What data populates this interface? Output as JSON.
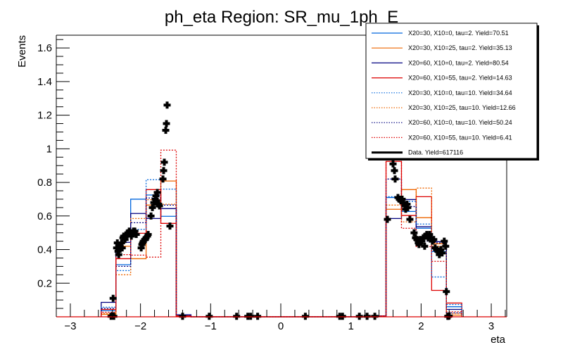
{
  "chart_data": {
    "type": "histogram",
    "title": "ph_eta Region: SR_mu_1ph_E",
    "xlabel": "eta",
    "ylabel": "Events",
    "xlim": [
      -3.2,
      3.22
    ],
    "ylim": [
      0,
      1.676
    ],
    "xticks": [
      -3,
      -2,
      -1,
      0,
      1,
      2,
      3
    ],
    "xtick_labels": [
      "−3",
      "−2",
      "−1",
      "0",
      "1",
      "2",
      "3"
    ],
    "yticks": [
      0.2,
      0.4,
      0.6,
      0.8,
      1.0,
      1.2,
      1.4,
      1.6
    ],
    "ytick_labels": [
      "0.2",
      "0.4",
      "0.6",
      "0.8",
      "1",
      "1.2",
      "1.4",
      "1.6"
    ],
    "grid": false,
    "legend_position": "top-right",
    "bin_edges": [
      -2.56,
      -2.35,
      -2.14,
      -1.92,
      -1.71,
      -1.49,
      -1.28,
      1.29,
      1.5,
      1.72,
      1.93,
      2.15,
      2.36,
      2.58
    ],
    "series": [
      {
        "name": "X20=30, X10=0, tau=2. Yield=70.51",
        "color": "#0066dd",
        "style": "solid",
        "values": [
          0.036,
          0.31,
          0.7,
          0.725,
          0.598,
          0.01,
          0,
          0.005,
          0.71,
          0.627,
          0.527,
          0.388,
          0.06
        ]
      },
      {
        "name": "X20=30, X10=25, tau=2. Yield=35.13",
        "color": "#ee6600",
        "style": "solid",
        "values": [
          0.015,
          0.42,
          0.346,
          0.665,
          0.808,
          0.005,
          0,
          0.005,
          0.64,
          0.757,
          0.59,
          0.435,
          0.01
        ]
      },
      {
        "name": "X20=60, X10=0, tau=2. Yield=80.54",
        "color": "#000080",
        "style": "solid",
        "values": [
          0.086,
          0.443,
          0.615,
          0.585,
          0.644,
          0.012,
          0,
          0.005,
          0.585,
          0.698,
          0.536,
          0.447,
          0.044
        ]
      },
      {
        "name": "X20=60, X10=55, tau=2. Yield=14.63",
        "color": "#dd0000",
        "style": "solid",
        "values": [
          0.044,
          0.346,
          0.497,
          0.757,
          0.556,
          0.005,
          0,
          0.005,
          0.925,
          0.603,
          0.715,
          0.157,
          0.082
        ]
      },
      {
        "name": "X20=30, X10=0, tau=10. Yield=34.64",
        "color": "#0066dd",
        "style": "dotted",
        "values": [
          0.057,
          0.275,
          0.52,
          0.816,
          0.76,
          0.01,
          0,
          0.005,
          0.715,
          0.687,
          0.552,
          0.237,
          0.073
        ]
      },
      {
        "name": "X20=30, X10=25, tau=10. Yield=12.66",
        "color": "#ee6600",
        "style": "dotted",
        "values": [
          0.02,
          0.25,
          0.585,
          0.697,
          0.67,
          0.005,
          0,
          0.005,
          0.665,
          0.565,
          0.766,
          0.42,
          0.019
        ]
      },
      {
        "name": "X20=60, X10=0, tau=10. Yield=50.24",
        "color": "#000080",
        "style": "dotted",
        "values": [
          0.05,
          0.3,
          0.56,
          0.707,
          0.665,
          0.01,
          0,
          0.005,
          0.82,
          0.656,
          0.45,
          0.44,
          0.023
        ]
      },
      {
        "name": "X20=60, X10=55, tau=10. Yield=6.41",
        "color": "#dd0000",
        "style": "dotted",
        "values": [
          0.027,
          0.37,
          0.367,
          0.355,
          0.992,
          0.005,
          0,
          0.005,
          0.99,
          0.527,
          0.418,
          0.33,
          0.03
        ]
      }
    ],
    "data_series": {
      "name": "Data. Yield=617116",
      "color": "#000000",
      "points": [
        [
          -2.42,
          0.003
        ],
        [
          -2.4,
          0.005
        ],
        [
          -2.38,
          0.003
        ],
        [
          -2.39,
          0.11
        ],
        [
          -2.34,
          0.41
        ],
        [
          -2.33,
          0.44
        ],
        [
          -2.32,
          0.39
        ],
        [
          -2.31,
          0.37
        ],
        [
          -2.3,
          0.42
        ],
        [
          -2.28,
          0.41
        ],
        [
          -2.27,
          0.44
        ],
        [
          -2.26,
          0.41
        ],
        [
          -2.25,
          0.47
        ],
        [
          -2.24,
          0.48
        ],
        [
          -2.22,
          0.46
        ],
        [
          -2.2,
          0.48
        ],
        [
          -2.19,
          0.49
        ],
        [
          -2.18,
          0.5
        ],
        [
          -2.16,
          0.51
        ],
        [
          -2.15,
          0.5
        ],
        [
          -2.13,
          0.48
        ],
        [
          -2.12,
          0.5
        ],
        [
          -2.1,
          0.51
        ],
        [
          -2.08,
          0.51
        ],
        [
          -2.06,
          0.49
        ],
        [
          -1.99,
          0.41
        ],
        [
          -1.98,
          0.43
        ],
        [
          -1.97,
          0.44
        ],
        [
          -1.96,
          0.45
        ],
        [
          -1.94,
          0.46
        ],
        [
          -1.93,
          0.46
        ],
        [
          -1.92,
          0.47
        ],
        [
          -1.9,
          0.48
        ],
        [
          -1.89,
          0.49
        ],
        [
          -1.85,
          0.6
        ],
        [
          -1.83,
          0.65
        ],
        [
          -1.81,
          0.68
        ],
        [
          -1.79,
          0.7
        ],
        [
          -1.77,
          0.69
        ],
        [
          -1.78,
          0.72
        ],
        [
          -1.76,
          0.74
        ],
        [
          -1.74,
          0.67
        ],
        [
          -1.73,
          0.66
        ],
        [
          -1.68,
          0.82
        ],
        [
          -1.67,
          0.87
        ],
        [
          -1.66,
          0.92
        ],
        [
          -1.64,
          1.11
        ],
        [
          -1.63,
          1.15
        ],
        [
          -1.62,
          1.26
        ],
        [
          -1.58,
          0.54
        ],
        [
          -1.4,
          0.003
        ],
        [
          -1.02,
          0.003
        ],
        [
          -0.63,
          0.003
        ],
        [
          -0.47,
          0.003
        ],
        [
          -0.43,
          0.003
        ],
        [
          -0.33,
          0.003
        ],
        [
          0.35,
          0.003
        ],
        [
          0.84,
          0.003
        ],
        [
          0.88,
          0.003
        ],
        [
          1.12,
          0.003
        ],
        [
          1.23,
          0.003
        ],
        [
          1.34,
          0.003
        ],
        [
          1.52,
          0.58
        ],
        [
          1.6,
          0.91
        ],
        [
          1.62,
          0.87
        ],
        [
          1.63,
          0.82
        ],
        [
          1.67,
          0.71
        ],
        [
          1.69,
          0.7
        ],
        [
          1.71,
          0.69
        ],
        [
          1.73,
          0.7
        ],
        [
          1.75,
          0.68
        ],
        [
          1.77,
          0.66
        ],
        [
          1.78,
          0.64
        ],
        [
          1.8,
          0.67
        ],
        [
          1.81,
          0.65
        ],
        [
          1.84,
          0.58
        ],
        [
          1.9,
          0.5
        ],
        [
          1.92,
          0.47
        ],
        [
          1.94,
          0.46
        ],
        [
          1.96,
          0.44
        ],
        [
          1.97,
          0.43
        ],
        [
          1.99,
          0.46
        ],
        [
          2.01,
          0.45
        ],
        [
          2.03,
          0.47
        ],
        [
          2.05,
          0.42
        ],
        [
          2.06,
          0.48
        ],
        [
          2.08,
          0.49
        ],
        [
          2.1,
          0.47
        ],
        [
          2.12,
          0.49
        ],
        [
          2.14,
          0.47
        ],
        [
          2.16,
          0.45
        ],
        [
          2.18,
          0.46
        ],
        [
          2.2,
          0.41
        ],
        [
          2.22,
          0.4
        ],
        [
          2.24,
          0.39
        ],
        [
          2.26,
          0.37
        ],
        [
          2.28,
          0.4
        ],
        [
          2.3,
          0.38
        ],
        [
          2.33,
          0.45
        ],
        [
          2.35,
          0.42
        ],
        [
          2.38,
          0.003
        ],
        [
          2.4,
          0.005
        ],
        [
          2.36,
          0.15
        ],
        [
          2.39,
          0.003
        ]
      ]
    },
    "legend": [
      {
        "label": "X20=30, X10=0, tau=2. Yield=70.51",
        "color": "#0066dd",
        "style": "solid"
      },
      {
        "label": "X20=30, X10=25, tau=2. Yield=35.13",
        "color": "#ee6600",
        "style": "solid"
      },
      {
        "label": "X20=60, X10=0, tau=2. Yield=80.54",
        "color": "#000080",
        "style": "solid"
      },
      {
        "label": "X20=60, X10=55, tau=2. Yield=14.63",
        "color": "#dd0000",
        "style": "solid"
      },
      {
        "label": "X20=30, X10=0, tau=10. Yield=34.64",
        "color": "#0066dd",
        "style": "dotted"
      },
      {
        "label": "X20=30, X10=25, tau=10. Yield=12.66",
        "color": "#ee6600",
        "style": "dotted"
      },
      {
        "label": "X20=60, X10=0, tau=10. Yield=50.24",
        "color": "#000080",
        "style": "dotted"
      },
      {
        "label": "X20=60, X10=55, tau=10. Yield=6.41",
        "color": "#dd0000",
        "style": "dotted"
      },
      {
        "label": "Data. Yield=617116",
        "color": "#000000",
        "style": "thick"
      }
    ]
  }
}
